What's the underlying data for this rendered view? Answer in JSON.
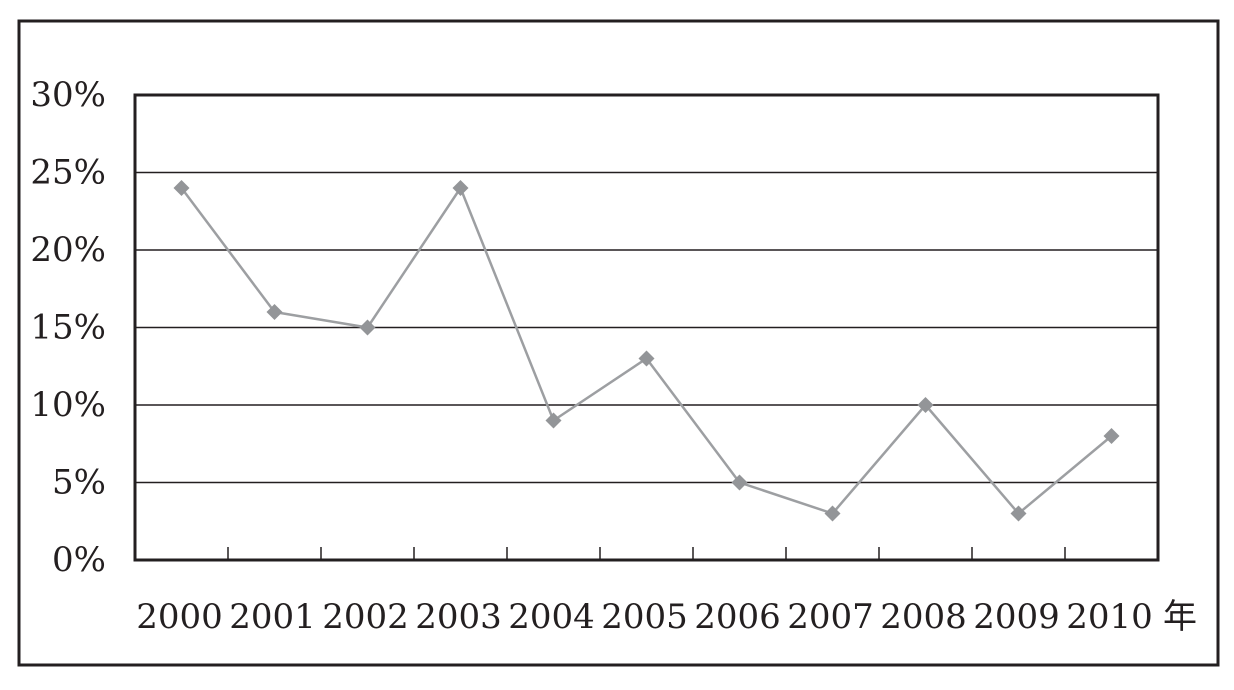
{
  "chart_data": {
    "type": "line",
    "title": "",
    "xlabel": "",
    "ylabel": "",
    "x_unit": "年",
    "categories": [
      "2000",
      "2001",
      "2002",
      "2003",
      "2004",
      "2005",
      "2006",
      "2007",
      "2008",
      "2009",
      "2010"
    ],
    "series": [
      {
        "values": [
          24,
          16,
          15,
          24,
          9,
          13,
          5,
          3,
          10,
          3,
          8
        ]
      }
    ],
    "y_ticks": [
      "0%",
      "5%",
      "10%",
      "15%",
      "20%",
      "25%",
      "30%"
    ],
    "ylim": [
      0,
      30
    ],
    "y_unit": "%",
    "grid": true,
    "legend": "none",
    "colors": {
      "line": "#9d9fa2",
      "marker": "#939598",
      "axis": "#231f20",
      "grid": "#231f20",
      "text": "#231f20",
      "frame": "#231f20"
    }
  }
}
